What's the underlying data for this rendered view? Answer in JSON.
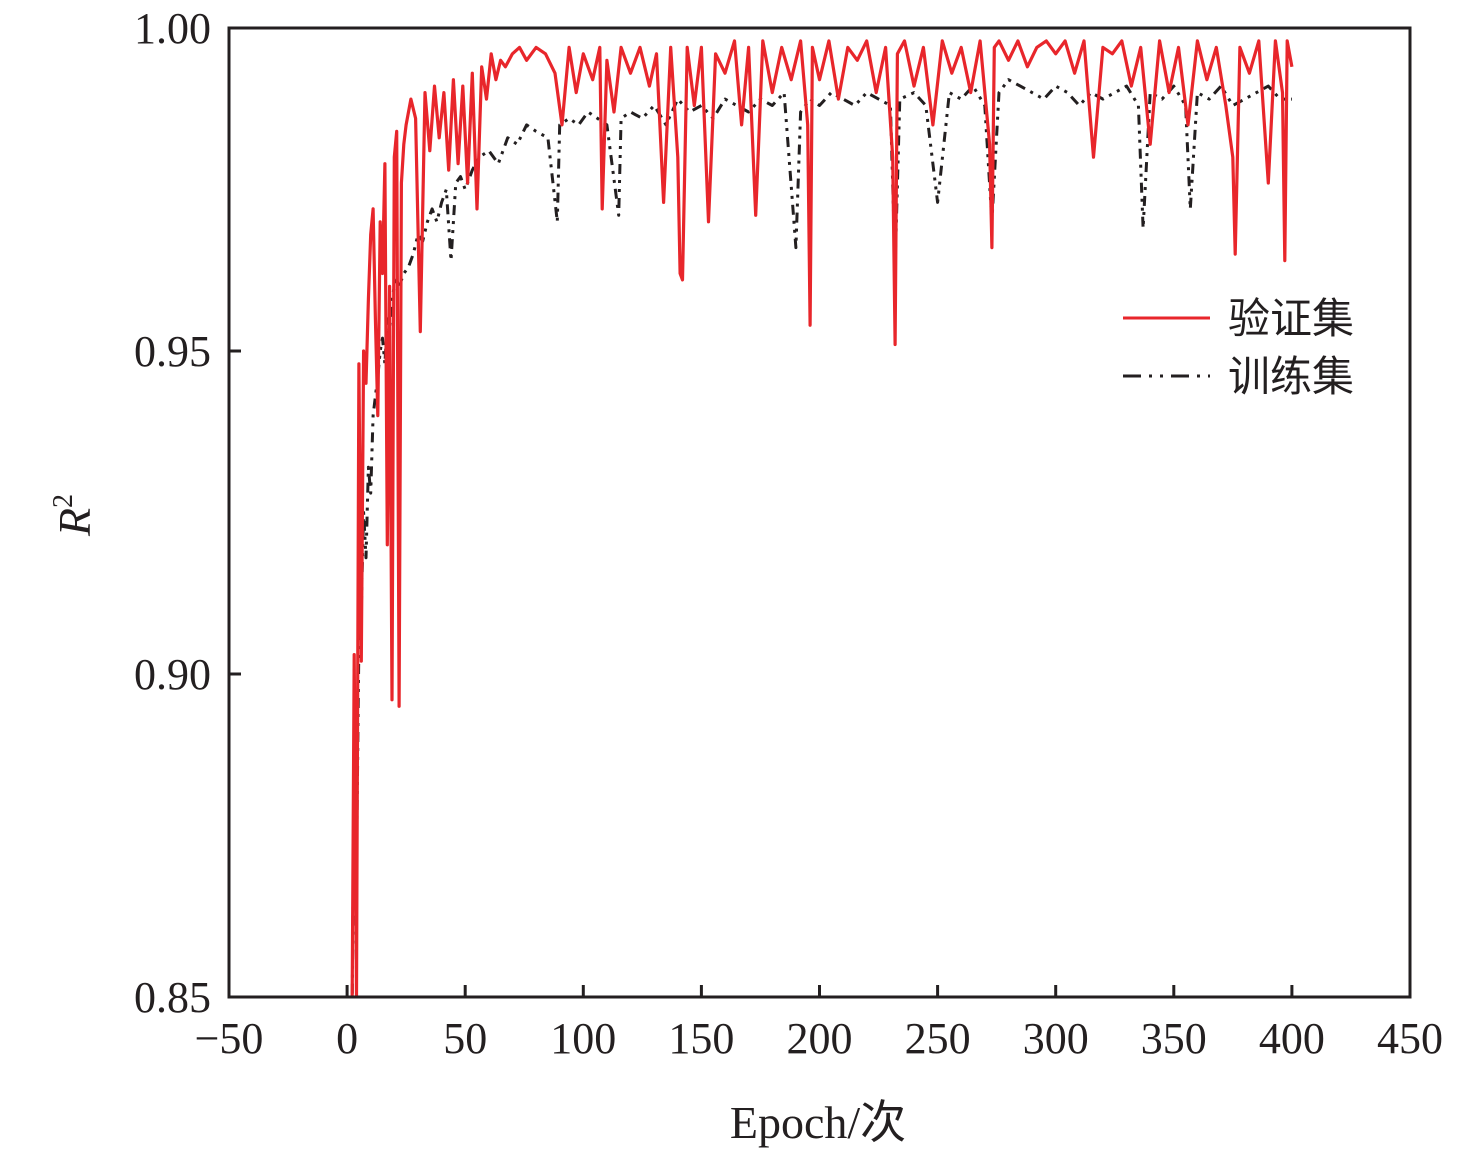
{
  "chart_data": {
    "type": "line",
    "title": "",
    "xlabel": "Epoch/次",
    "ylabel": "R",
    "ylabel_superscript": "2",
    "xlim": [
      -50,
      450
    ],
    "ylim": [
      0.85,
      1.0
    ],
    "xticks": [
      -50,
      0,
      50,
      100,
      150,
      200,
      250,
      300,
      350,
      400,
      450
    ],
    "xtick_labels": [
      "−50",
      "0",
      "50",
      "100",
      "150",
      "200",
      "250",
      "300",
      "350",
      "400",
      "450"
    ],
    "yticks": [
      0.85,
      0.9,
      0.95,
      1.0
    ],
    "ytick_labels": [
      "0.85",
      "0.90",
      "0.95",
      "1.00"
    ],
    "grid": false,
    "legend_position": "right",
    "series": [
      {
        "name": "验证集",
        "color": "#e8262b",
        "style": "solid",
        "x": [
          1,
          2,
          3,
          4,
          5,
          6,
          7,
          8,
          9,
          10,
          11,
          12,
          13,
          14,
          15,
          16,
          17,
          18,
          19,
          20,
          21,
          22,
          23,
          24,
          25,
          27,
          29,
          31,
          33,
          35,
          37,
          39,
          41,
          43,
          45,
          47,
          49,
          51,
          53,
          55,
          57,
          59,
          61,
          63,
          65,
          67,
          70,
          73,
          76,
          80,
          84,
          88,
          91,
          94,
          97,
          100,
          104,
          107,
          108,
          110,
          113,
          116,
          120,
          124,
          128,
          131,
          134,
          137,
          140,
          141,
          142,
          144,
          147,
          150,
          153,
          156,
          160,
          164,
          167,
          170,
          173,
          176,
          180,
          184,
          188,
          192,
          195,
          196,
          197,
          200,
          204,
          208,
          212,
          216,
          220,
          224,
          228,
          231,
          232,
          233,
          236,
          240,
          244,
          248,
          252,
          256,
          260,
          264,
          268,
          272,
          273,
          274,
          276,
          280,
          284,
          288,
          292,
          296,
          300,
          304,
          308,
          312,
          316,
          320,
          324,
          328,
          332,
          336,
          340,
          344,
          348,
          352,
          356,
          360,
          364,
          368,
          372,
          375,
          376,
          378,
          382,
          386,
          390,
          393,
          396,
          397,
          398,
          400
        ],
        "y": [
          0.84,
          0.84,
          0.903,
          0.85,
          0.948,
          0.902,
          0.95,
          0.945,
          0.958,
          0.968,
          0.972,
          0.955,
          0.94,
          0.97,
          0.962,
          0.979,
          0.92,
          0.96,
          0.896,
          0.98,
          0.984,
          0.895,
          0.976,
          0.982,
          0.985,
          0.989,
          0.986,
          0.953,
          0.99,
          0.981,
          0.991,
          0.983,
          0.99,
          0.978,
          0.992,
          0.979,
          0.991,
          0.976,
          0.993,
          0.972,
          0.994,
          0.989,
          0.996,
          0.992,
          0.995,
          0.994,
          0.996,
          0.997,
          0.995,
          0.997,
          0.996,
          0.993,
          0.985,
          0.997,
          0.99,
          0.996,
          0.992,
          0.997,
          0.972,
          0.995,
          0.987,
          0.997,
          0.993,
          0.997,
          0.991,
          0.996,
          0.973,
          0.997,
          0.98,
          0.962,
          0.961,
          0.997,
          0.988,
          0.997,
          0.97,
          0.996,
          0.993,
          0.998,
          0.985,
          0.997,
          0.971,
          0.998,
          0.99,
          0.997,
          0.992,
          0.998,
          0.985,
          0.954,
          0.997,
          0.992,
          0.998,
          0.989,
          0.997,
          0.995,
          0.998,
          0.99,
          0.997,
          0.98,
          0.951,
          0.996,
          0.998,
          0.991,
          0.997,
          0.985,
          0.998,
          0.993,
          0.997,
          0.99,
          0.998,
          0.982,
          0.966,
          0.997,
          0.998,
          0.995,
          0.998,
          0.994,
          0.997,
          0.998,
          0.996,
          0.998,
          0.993,
          0.998,
          0.98,
          0.997,
          0.996,
          0.998,
          0.991,
          0.997,
          0.982,
          0.998,
          0.99,
          0.997,
          0.985,
          0.998,
          0.992,
          0.997,
          0.988,
          0.98,
          0.965,
          0.997,
          0.993,
          0.998,
          0.976,
          0.998,
          0.99,
          0.964,
          0.998,
          0.994
        ]
      },
      {
        "name": "训练集",
        "color": "#231f20",
        "style": "dash-dot-dot",
        "x": [
          2,
          3,
          4,
          5,
          6,
          7,
          8,
          9,
          10,
          11,
          12,
          13,
          14,
          15,
          16,
          17,
          18,
          19,
          20,
          21,
          22,
          24,
          26,
          28,
          30,
          32,
          34,
          36,
          38,
          40,
          42,
          44,
          46,
          48,
          50,
          53,
          56,
          60,
          64,
          68,
          72,
          76,
          80,
          85,
          89,
          90,
          94,
          98,
          102,
          106,
          110,
          115,
          116,
          120,
          125,
          130,
          135,
          140,
          145,
          150,
          155,
          160,
          165,
          170,
          175,
          180,
          185,
          190,
          192,
          196,
          200,
          205,
          210,
          215,
          220,
          225,
          230,
          232,
          234,
          240,
          245,
          250,
          255,
          260,
          265,
          270,
          273,
          276,
          280,
          285,
          290,
          295,
          300,
          305,
          310,
          315,
          320,
          325,
          330,
          335,
          337,
          340,
          345,
          350,
          355,
          357,
          360,
          365,
          370,
          375,
          380,
          385,
          390,
          395,
          400
        ],
        "y": [
          0.84,
          0.89,
          0.87,
          0.905,
          0.91,
          0.925,
          0.918,
          0.932,
          0.928,
          0.94,
          0.943,
          0.946,
          0.95,
          0.952,
          0.948,
          0.955,
          0.953,
          0.958,
          0.96,
          0.961,
          0.96,
          0.962,
          0.963,
          0.965,
          0.968,
          0.967,
          0.97,
          0.972,
          0.97,
          0.973,
          0.975,
          0.964,
          0.976,
          0.977,
          0.975,
          0.978,
          0.98,
          0.981,
          0.979,
          0.983,
          0.982,
          0.985,
          0.984,
          0.983,
          0.97,
          0.985,
          0.986,
          0.985,
          0.987,
          0.986,
          0.985,
          0.971,
          0.986,
          0.987,
          0.986,
          0.988,
          0.985,
          0.989,
          0.987,
          0.988,
          0.986,
          0.989,
          0.988,
          0.987,
          0.989,
          0.988,
          0.99,
          0.966,
          0.987,
          0.989,
          0.988,
          0.99,
          0.989,
          0.988,
          0.99,
          0.989,
          0.988,
          0.963,
          0.989,
          0.99,
          0.988,
          0.973,
          0.99,
          0.989,
          0.991,
          0.988,
          0.97,
          0.99,
          0.992,
          0.991,
          0.99,
          0.989,
          0.991,
          0.99,
          0.988,
          0.99,
          0.989,
          0.99,
          0.991,
          0.988,
          0.969,
          0.99,
          0.989,
          0.991,
          0.988,
          0.972,
          0.99,
          0.989,
          0.991,
          0.988,
          0.989,
          0.99,
          0.991,
          0.989,
          0.989
        ]
      }
    ]
  }
}
